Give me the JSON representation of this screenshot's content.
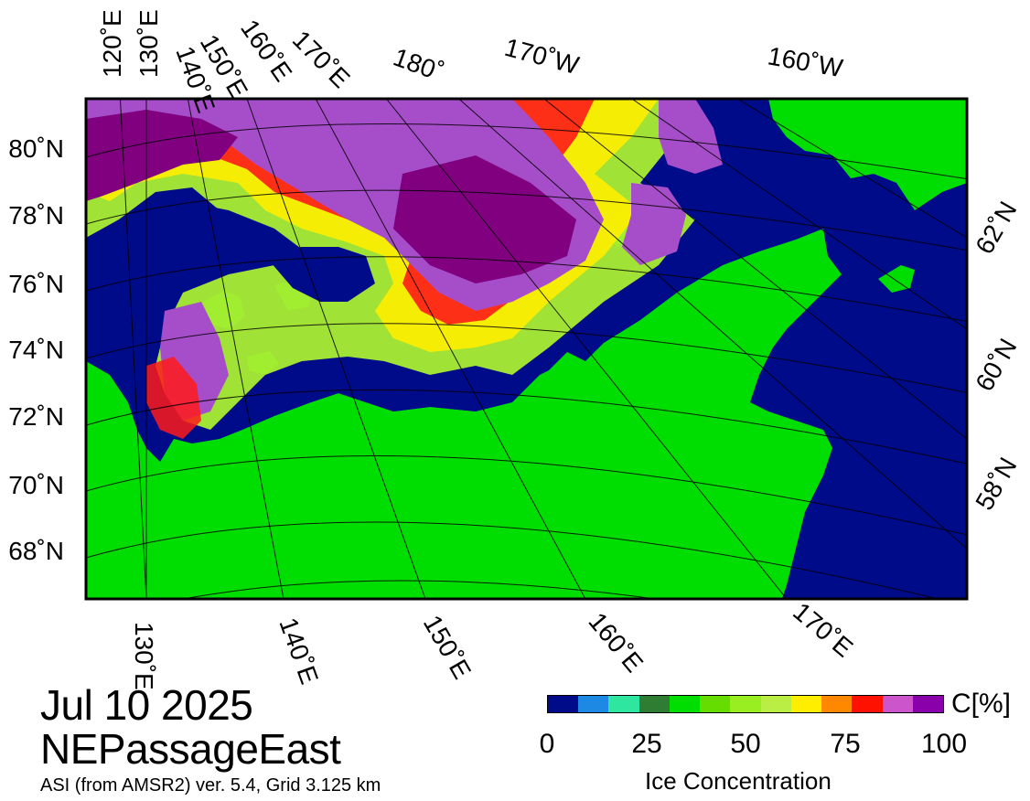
{
  "date": "Jul 10 2025",
  "region": "NEPassageEast",
  "credit": "ASI (from AMSR2) ver. 5.4,  Grid 3.125 km",
  "colorbar": {
    "unit": "C[%]",
    "title": "Ice Concentration",
    "ticks": [
      "0",
      "25",
      "50",
      "75",
      "100"
    ],
    "colors": [
      "#000b8a",
      "#1e88e5",
      "#2ee6a0",
      "#2e7d32",
      "#00dd00",
      "#66dd00",
      "#99ee22",
      "#bbee44",
      "#ffee00",
      "#ff8800",
      "#ff1100",
      "#cc55cc",
      "#8a00aa"
    ]
  },
  "map_colors": {
    "land": "#00dd00",
    "ocean": "#000b8a",
    "ice_high": "#800080",
    "ice_mid": "#a64dc9",
    "ice_red": "#ff1a1a",
    "ice_yellow": "#ffee00",
    "ice_lime": "#aaee33"
  },
  "labels": {
    "top": [
      "120˚E",
      "130˚E",
      "140˚E",
      "150˚E",
      "160˚E",
      "170˚E",
      "180˚",
      "170˚W",
      "160˚W"
    ],
    "left": [
      "80˚N",
      "78˚N",
      "76˚N",
      "74˚N",
      "72˚N",
      "70˚N",
      "68˚N"
    ],
    "right": [
      "62˚N",
      "60˚N",
      "58˚N"
    ],
    "bottom": [
      "130˚E",
      "140˚E",
      "150˚E",
      "160˚E",
      "170˚E"
    ]
  }
}
